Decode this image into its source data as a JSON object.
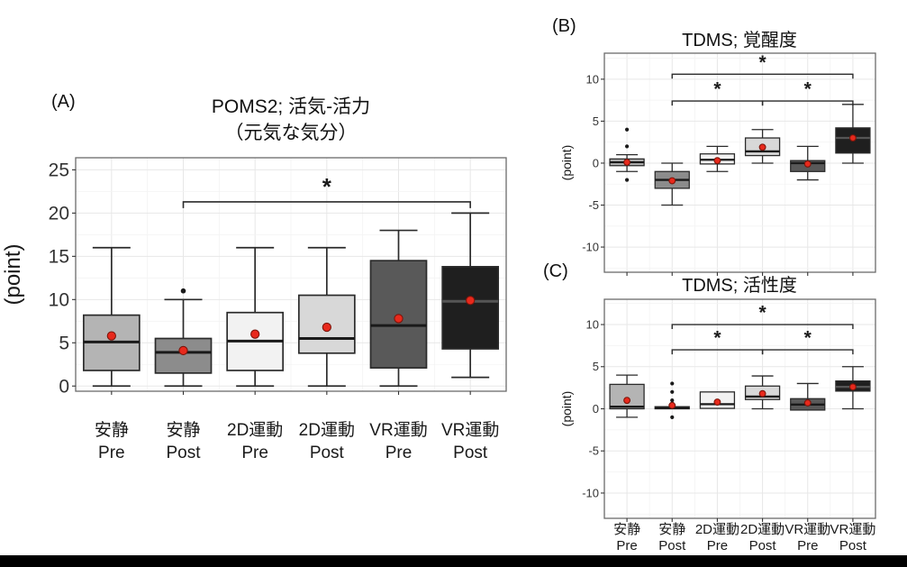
{
  "figure": {
    "background": "#ffffff",
    "bottom_bar_color": "#000000",
    "star_symbol": "*",
    "palette": {
      "box_fills": [
        "#b4b4b4",
        "#8c8c8c",
        "#f2f2f2",
        "#d8d8d8",
        "#595959",
        "#1f1f1f"
      ],
      "box_stroke": "#2b2b2b",
      "median_color": "#1a1a1a",
      "median_color_on_dark": "#555555",
      "mean_dot_fill": "#e8291c",
      "mean_dot_stroke": "#7c150b",
      "outlier_color": "#1a1a1a",
      "grid_major": "#e7e7e7",
      "grid_minor": "#f3f3f3",
      "panel_border": "#6b6b6b",
      "tick_color": "#333333",
      "text_color": "#1a1a1a"
    }
  },
  "chart_data": [
    {
      "type": "boxplot",
      "id": "A",
      "panel_label": "(A)",
      "title_lines": [
        "POMS2; 活気-活力",
        "（元気な気分）"
      ],
      "ylabel": "(point)",
      "yticks": [
        0,
        5,
        10,
        15,
        20,
        25
      ],
      "ylim": [
        -0.6,
        26.4
      ],
      "categories": [
        {
          "group": "安静",
          "phase": "Pre"
        },
        {
          "group": "安静",
          "phase": "Post"
        },
        {
          "group": "2D運動",
          "phase": "Pre"
        },
        {
          "group": "2D運動",
          "phase": "Post"
        },
        {
          "group": "VR運動",
          "phase": "Pre"
        },
        {
          "group": "VR運動",
          "phase": "Post"
        }
      ],
      "boxes": [
        {
          "whisker_low": 0,
          "q1": 1.8,
          "median": 5.1,
          "q3": 8.2,
          "whisker_high": 16,
          "mean": 5.8,
          "outliers": []
        },
        {
          "whisker_low": 0,
          "q1": 1.5,
          "median": 3.9,
          "q3": 5.5,
          "whisker_high": 10,
          "mean": 4.1,
          "outliers": [
            11
          ]
        },
        {
          "whisker_low": 0,
          "q1": 1.8,
          "median": 5.2,
          "q3": 8.5,
          "whisker_high": 16,
          "mean": 6.0,
          "outliers": []
        },
        {
          "whisker_low": 0,
          "q1": 3.8,
          "median": 5.5,
          "q3": 10.5,
          "whisker_high": 16,
          "mean": 6.8,
          "outliers": []
        },
        {
          "whisker_low": 0,
          "q1": 2.1,
          "median": 7.0,
          "q3": 14.5,
          "whisker_high": 18,
          "mean": 7.8,
          "outliers": []
        },
        {
          "whisker_low": 1,
          "q1": 4.3,
          "median": 9.8,
          "q3": 13.8,
          "whisker_high": 20,
          "mean": 9.9,
          "outliers": []
        }
      ],
      "brackets": [
        {
          "from": 1,
          "to": 5,
          "y": 21.3,
          "star_y": 23.1
        }
      ]
    },
    {
      "type": "boxplot",
      "id": "B",
      "panel_label": "(B)",
      "title_lines": [
        "TDMS; 覚醒度"
      ],
      "ylabel": "(point)",
      "yticks": [
        -10,
        -5,
        0,
        5,
        10
      ],
      "ylim": [
        -13,
        13.1
      ],
      "categories": [
        {
          "group": "安静",
          "phase": "Pre"
        },
        {
          "group": "安静",
          "phase": "Post"
        },
        {
          "group": "2D運動",
          "phase": "Pre"
        },
        {
          "group": "2D運動",
          "phase": "Post"
        },
        {
          "group": "VR運動",
          "phase": "Pre"
        },
        {
          "group": "VR運動",
          "phase": "Post"
        }
      ],
      "boxes": [
        {
          "whisker_low": -1,
          "q1": -0.3,
          "median": 0.1,
          "q3": 0.5,
          "whisker_high": 1,
          "mean": 0.1,
          "outliers": [
            4,
            2,
            -2
          ]
        },
        {
          "whisker_low": -5,
          "q1": -3,
          "median": -2,
          "q3": -1,
          "whisker_high": 0,
          "mean": -2.1,
          "outliers": []
        },
        {
          "whisker_low": -1,
          "q1": -0.1,
          "median": 0.4,
          "q3": 1.1,
          "whisker_high": 2,
          "mean": 0.3,
          "outliers": []
        },
        {
          "whisker_low": 0,
          "q1": 0.9,
          "median": 1.4,
          "q3": 3.0,
          "whisker_high": 4,
          "mean": 1.9,
          "outliers": []
        },
        {
          "whisker_low": -2,
          "q1": -1,
          "median": 0.0,
          "q3": 0.3,
          "whisker_high": 2,
          "mean": -0.1,
          "outliers": []
        },
        {
          "whisker_low": 0,
          "q1": 1.2,
          "median": 3.0,
          "q3": 4.2,
          "whisker_high": 7,
          "mean": 3.0,
          "outliers": []
        }
      ],
      "brackets": [
        {
          "from": 1,
          "to": 5,
          "y": 10.6,
          "star_y": 12.1
        },
        {
          "from": 1,
          "to": 3,
          "y": 7.4,
          "star_y": 8.9
        },
        {
          "from": 3,
          "to": 5,
          "y": 7.4,
          "star_y": 8.9
        }
      ]
    },
    {
      "type": "boxplot",
      "id": "C",
      "panel_label": "(C)",
      "title_lines": [
        "TDMS; 活性度"
      ],
      "ylabel": "(point)",
      "yticks": [
        -10,
        -5,
        0,
        5,
        10
      ],
      "ylim": [
        -13,
        13.0
      ],
      "categories": [
        {
          "group": "安静",
          "phase": "Pre"
        },
        {
          "group": "安静",
          "phase": "Post"
        },
        {
          "group": "2D運動",
          "phase": "Pre"
        },
        {
          "group": "2D運動",
          "phase": "Post"
        },
        {
          "group": "VR運動",
          "phase": "Pre"
        },
        {
          "group": "VR運動",
          "phase": "Post"
        }
      ],
      "boxes": [
        {
          "whisker_low": -1,
          "q1": 0.0,
          "median": 0.25,
          "q3": 2.9,
          "whisker_high": 4,
          "mean": 1.0,
          "outliers": []
        },
        {
          "whisker_low": -0.05,
          "q1": 0.0,
          "median": 0.1,
          "q3": 0.25,
          "whisker_high": 0.3,
          "mean": 0.4,
          "outliers": [
            3,
            2,
            1,
            -1
          ]
        },
        {
          "whisker_low": 0,
          "q1": 0.05,
          "median": 0.55,
          "q3": 2.0,
          "whisker_high": 2,
          "mean": 0.8,
          "outliers": []
        },
        {
          "whisker_low": 0,
          "q1": 1.1,
          "median": 1.45,
          "q3": 2.7,
          "whisker_high": 3.9,
          "mean": 1.8,
          "outliers": []
        },
        {
          "whisker_low": -0.15,
          "q1": -0.15,
          "median": 0.5,
          "q3": 1.2,
          "whisker_high": 3,
          "mean": 0.7,
          "outliers": []
        },
        {
          "whisker_low": 0,
          "q1": 2.1,
          "median": 2.6,
          "q3": 3.3,
          "whisker_high": 5,
          "mean": 2.6,
          "outliers": []
        }
      ],
      "brackets": [
        {
          "from": 1,
          "to": 5,
          "y": 10.0,
          "star_y": 11.5
        },
        {
          "from": 1,
          "to": 3,
          "y": 7.0,
          "star_y": 8.5
        },
        {
          "from": 3,
          "to": 5,
          "y": 7.0,
          "star_y": 8.5
        }
      ]
    }
  ]
}
